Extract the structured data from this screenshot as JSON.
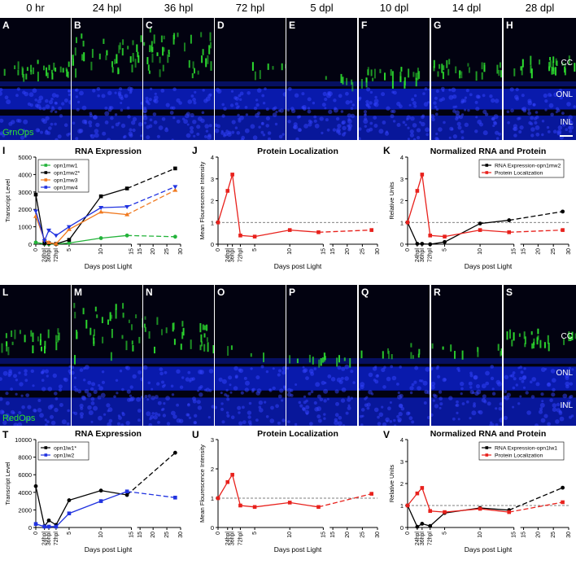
{
  "row1": {
    "panels": [
      {
        "letter": "A",
        "time": "0 hr",
        "label": "GrnOps"
      },
      {
        "letter": "B",
        "time": "24 hpl"
      },
      {
        "letter": "C",
        "time": "36 hpl"
      },
      {
        "letter": "D",
        "time": "72 hpl"
      },
      {
        "letter": "E",
        "time": "5 dpl"
      },
      {
        "letter": "F",
        "time": "10 dpl"
      },
      {
        "letter": "G",
        "time": "14 dpl"
      },
      {
        "letter": "H",
        "time": "28 dpl",
        "layers": [
          "CC",
          "ONL",
          "INL"
        ]
      }
    ]
  },
  "row2": {
    "panels": [
      {
        "letter": "L",
        "label": "RedOps"
      },
      {
        "letter": "M"
      },
      {
        "letter": "N"
      },
      {
        "letter": "O"
      },
      {
        "letter": "P"
      },
      {
        "letter": "Q"
      },
      {
        "letter": "R"
      },
      {
        "letter": "S",
        "layers": [
          "CC",
          "ONL",
          "INL"
        ]
      }
    ]
  },
  "colors": {
    "blue": "#0b1fc8",
    "green": "#27e02a",
    "black": "#000000",
    "red": "#e8211c",
    "orange": "#f07a20",
    "bluePlot": "#2133e0",
    "greenPlot": "#23b33a"
  },
  "chart_data": [
    {
      "id": "I",
      "type": "line",
      "title": "RNA Expression",
      "ylabel": "Transcript Level",
      "xlabel": "Days post Light",
      "ylim": [
        0,
        5000
      ],
      "yticks": [
        0,
        1000,
        2000,
        3000,
        4000,
        5000
      ],
      "xticks": [
        "0",
        "24hpl",
        "36hpl",
        "72hpl",
        "5",
        "10",
        "15",
        "15",
        "20",
        "25",
        "30"
      ],
      "series": [
        {
          "name": "opn1mw1",
          "color": "#23b33a",
          "marker": "circle",
          "x": [
            0,
            1,
            1.5,
            3,
            5,
            10,
            14,
            28
          ],
          "y": [
            100,
            20,
            10,
            10,
            70,
            350,
            500,
            430
          ]
        },
        {
          "name": "opn1mw2*",
          "color": "#000000",
          "marker": "square",
          "x": [
            0,
            1,
            1.5,
            3,
            5,
            10,
            14,
            28
          ],
          "y": [
            2850,
            50,
            60,
            20,
            250,
            2750,
            3200,
            4350
          ]
        },
        {
          "name": "opn1mw3",
          "color": "#f07a20",
          "marker": "triangle",
          "x": [
            0,
            1,
            1.5,
            3,
            5,
            10,
            14,
            28
          ],
          "y": [
            1600,
            250,
            100,
            20,
            850,
            1850,
            1700,
            3100
          ]
        },
        {
          "name": "opn1mw4",
          "color": "#2133e0",
          "marker": "triangle-down",
          "x": [
            0,
            1,
            1.5,
            3,
            5,
            10,
            14,
            28
          ],
          "y": [
            1900,
            200,
            800,
            500,
            1000,
            2100,
            2150,
            3300
          ]
        }
      ]
    },
    {
      "id": "J",
      "type": "line",
      "title": "Protein Localization",
      "ylabel": "Mean Flourescence Intensity",
      "xlabel": "Days post Light",
      "ylim": [
        0,
        4
      ],
      "yticks": [
        0,
        1,
        2,
        3,
        4
      ],
      "xticks": [
        "0",
        "24hpl",
        "36hpl",
        "72hpl",
        "5",
        "10",
        "15",
        "15",
        "20",
        "25",
        "30"
      ],
      "series": [
        {
          "name": "",
          "color": "#e8211c",
          "marker": "square",
          "x": [
            0,
            1,
            1.5,
            3,
            5,
            10,
            14,
            28
          ],
          "y": [
            1.0,
            2.45,
            3.2,
            0.4,
            0.35,
            0.65,
            0.55,
            0.65
          ]
        }
      ]
    },
    {
      "id": "K",
      "type": "line",
      "title": "Normalized RNA and Protein",
      "ylabel": "Relative Units",
      "xlabel": "Days post Light",
      "ylim": [
        0,
        4
      ],
      "yticks": [
        0,
        1,
        2,
        3,
        4
      ],
      "xticks": [
        "0",
        "24hpl",
        "36hpl",
        "72hpl",
        "5",
        "10",
        "15",
        "15",
        "20",
        "25",
        "30"
      ],
      "series": [
        {
          "name": "RNA Expression-opn1mw2",
          "color": "#000000",
          "marker": "circle",
          "x": [
            0,
            1,
            1.5,
            3,
            5,
            10,
            14,
            28
          ],
          "y": [
            1.0,
            0.02,
            0.02,
            0.0,
            0.1,
            0.95,
            1.1,
            1.5
          ]
        },
        {
          "name": "Protein Localization",
          "color": "#e8211c",
          "marker": "square",
          "x": [
            0,
            1,
            1.5,
            3,
            5,
            10,
            14,
            28
          ],
          "y": [
            1.0,
            2.45,
            3.2,
            0.4,
            0.35,
            0.65,
            0.55,
            0.65
          ]
        }
      ]
    },
    {
      "id": "T",
      "type": "line",
      "title": "RNA Expression",
      "ylabel": "Transcript Level",
      "xlabel": "Days post Light",
      "ylim": [
        0,
        10000
      ],
      "yticks": [
        0,
        2000,
        4000,
        6000,
        8000,
        10000
      ],
      "xticks": [
        "0",
        "24hpl",
        "36hpl",
        "72hpl",
        "5",
        "10",
        "15",
        "15",
        "20",
        "25",
        "30"
      ],
      "series": [
        {
          "name": "opn1lw1*",
          "color": "#000000",
          "marker": "circle",
          "x": [
            0,
            1,
            1.5,
            3,
            5,
            10,
            14,
            28
          ],
          "y": [
            4700,
            150,
            800,
            300,
            3100,
            4200,
            3700,
            8500
          ]
        },
        {
          "name": "opn1lw2",
          "color": "#2133e0",
          "marker": "square",
          "x": [
            0,
            1,
            1.5,
            3,
            5,
            10,
            14,
            28
          ],
          "y": [
            400,
            100,
            100,
            100,
            1600,
            3000,
            4100,
            3400
          ]
        }
      ]
    },
    {
      "id": "U",
      "type": "line",
      "title": "Protein Localization",
      "ylabel": "Mean Flourescence Intensity",
      "xlabel": "Days post Light",
      "ylim": [
        0,
        3
      ],
      "yticks": [
        0,
        1,
        2,
        3
      ],
      "xticks": [
        "0",
        "24hpl",
        "36hpl",
        "72hpl",
        "5",
        "10",
        "15",
        "15",
        "20",
        "25",
        "30"
      ],
      "series": [
        {
          "name": "",
          "color": "#e8211c",
          "marker": "square",
          "x": [
            0,
            1,
            1.5,
            3,
            5,
            10,
            14,
            28
          ],
          "y": [
            1.0,
            1.55,
            1.8,
            0.75,
            0.7,
            0.85,
            0.7,
            1.15
          ]
        }
      ]
    },
    {
      "id": "V",
      "type": "line",
      "title": "Normalized RNA and Protein",
      "ylabel": "Relative Units",
      "xlabel": "Days post Light",
      "ylim": [
        0,
        4
      ],
      "yticks": [
        0,
        1,
        2,
        3,
        4
      ],
      "xticks": [
        "0",
        "24hpl",
        "36hpl",
        "72hpl",
        "5",
        "10",
        "15",
        "15",
        "20",
        "25",
        "30"
      ],
      "series": [
        {
          "name": "RNA Expression-opn1lw1",
          "color": "#000000",
          "marker": "circle",
          "x": [
            0,
            1,
            1.5,
            3,
            5,
            10,
            14,
            28
          ],
          "y": [
            1.0,
            0.03,
            0.17,
            0.07,
            0.66,
            0.89,
            0.79,
            1.81
          ]
        },
        {
          "name": "Protein Localization",
          "color": "#e8211c",
          "marker": "square",
          "x": [
            0,
            1,
            1.5,
            3,
            5,
            10,
            14,
            28
          ],
          "y": [
            1.0,
            1.55,
            1.8,
            0.75,
            0.7,
            0.85,
            0.7,
            1.15
          ]
        }
      ]
    }
  ]
}
